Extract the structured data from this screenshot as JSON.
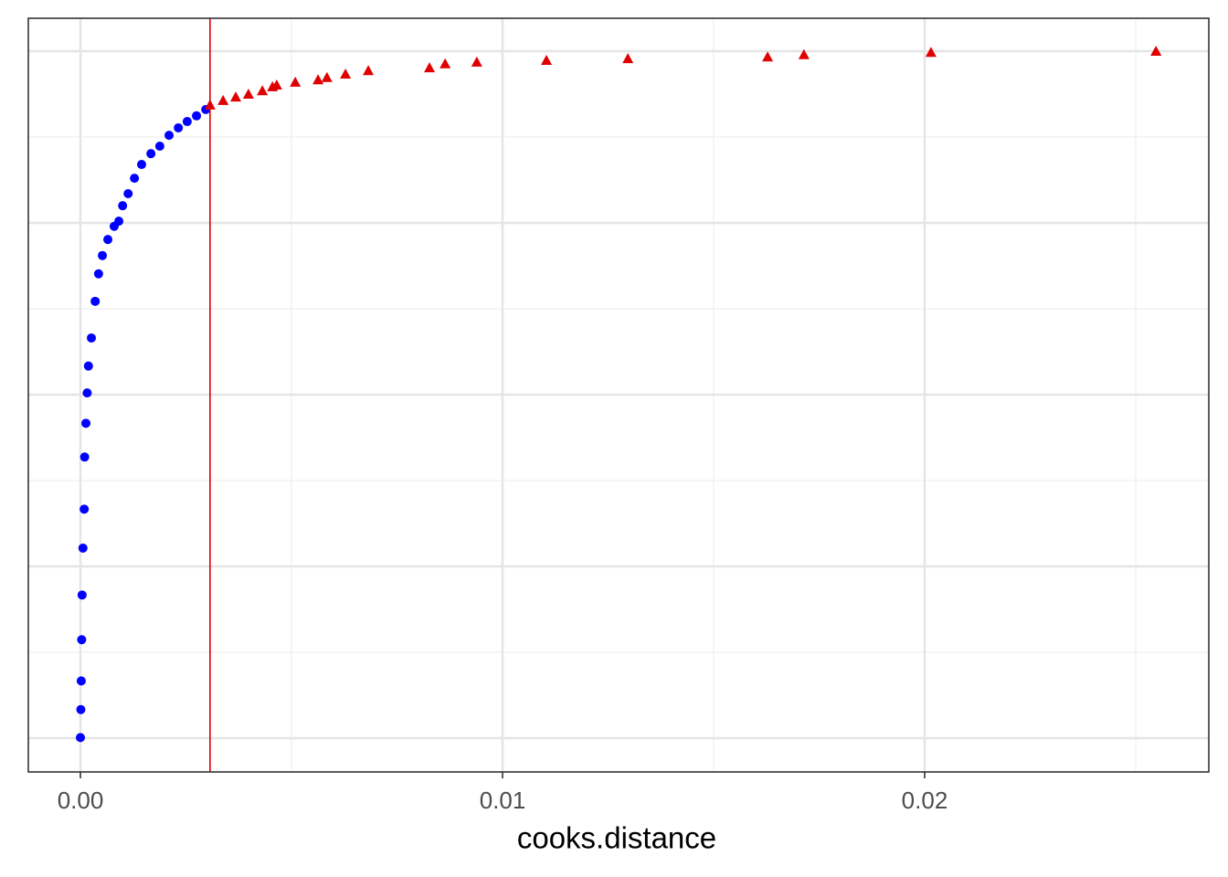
{
  "chart_data": {
    "type": "scatter",
    "x_label": "cooks.distance",
    "xlim": [
      -0.001234,
      0.026732
    ],
    "ylim": [
      -59.0,
      1257.4
    ],
    "xticks": [
      {
        "value": 0,
        "label": "0.00"
      },
      0.01,
      0.02
    ],
    "x_minor_ticks": [
      0.005,
      0.015,
      0.025
    ],
    "yticks": [
      0,
      300,
      600,
      900,
      1200
    ],
    "y_minor_ticks": [
      150,
      450,
      750,
      1050
    ],
    "show_ytick_labels": false,
    "grid": true,
    "vline": {
      "x": 0.00307,
      "color": "#e00000"
    },
    "series": [
      {
        "color": "#0000ff",
        "marker": "circle",
        "x": [
          0,
          1e-05,
          2e-05,
          3e-05,
          4e-05,
          6e-05,
          9e-05,
          0.0001,
          0.00013,
          0.00016,
          0.00019,
          0.00026,
          0.00035,
          0.00043,
          0.00052,
          0.00065,
          0.0008,
          0.00091,
          0.001,
          0.00113,
          0.00128,
          0.00145,
          0.00167,
          0.00188,
          0.0021,
          0.00232,
          0.00253,
          0.00275,
          0.00297
        ],
        "y": [
          1,
          50,
          100,
          172,
          250,
          332,
          400,
          491,
          550,
          603,
          650,
          699,
          763,
          811,
          843,
          871,
          894,
          903,
          930,
          951,
          978,
          1002,
          1021,
          1034,
          1053,
          1066,
          1077,
          1087,
          1098
        ]
      },
      {
        "color": "#e00000",
        "marker": "triangle",
        "x": [
          0.00307,
          0.00338,
          0.00368,
          0.00398,
          0.00431,
          0.00455,
          0.00465,
          0.00509,
          0.00563,
          0.00584,
          0.00628,
          0.00682,
          0.00827,
          0.00864,
          0.00939,
          0.01104,
          0.01297,
          0.01628,
          0.01714,
          0.02015,
          0.02548
        ],
        "y": [
          1106,
          1114,
          1120,
          1125,
          1131,
          1138,
          1141,
          1146,
          1150,
          1154,
          1160,
          1166,
          1171,
          1178,
          1181,
          1184,
          1187,
          1190,
          1194,
          1198,
          1200
        ]
      }
    ]
  }
}
